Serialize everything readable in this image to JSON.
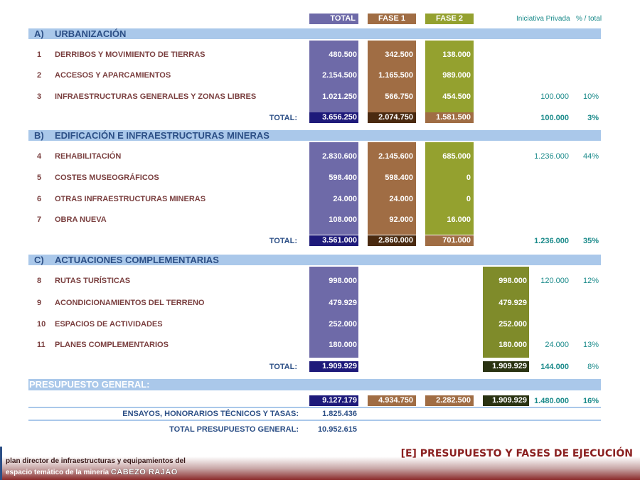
{
  "headers": {
    "total": "TOTAL",
    "fase1": "FASE 1",
    "fase2": "FASE 2",
    "iniciativa": "Iniciativa Privada",
    "pct": "% / total"
  },
  "colors": {
    "total": "#6e6aa8",
    "total_dark": "#1e1a7a",
    "fase1": "#a06d44",
    "fase1_dark": "#4a2a10",
    "fase2": "#94a12f",
    "fase2_dark": "#2a3312",
    "section_bar": "#aac8ea",
    "section_text": "#2c4f86",
    "item_text": "#7a3f3f",
    "teal": "#1a8a8a"
  },
  "sections": {
    "a": {
      "letter": "A)",
      "title": "URBANIZACIÓN",
      "items": [
        {
          "num": "1",
          "name": "DERRIBOS Y MOVIMIENTO DE TIERRAS",
          "total": "480.500",
          "fase1": "342.500",
          "fase2": "138.000",
          "ip": "",
          "pct": ""
        },
        {
          "num": "2",
          "name": "ACCESOS Y APARCAMIENTOS",
          "total": "2.154.500",
          "fase1": "1.165.500",
          "fase2": "989.000",
          "ip": "",
          "pct": ""
        },
        {
          "num": "3",
          "name": "INFRAESTRUCTURAS GENERALES Y ZONAS LIBRES",
          "total": "1.021.250",
          "fase1": "566.750",
          "fase2": "454.500",
          "ip": "100.000",
          "pct": "10%"
        }
      ],
      "totals": {
        "label": "TOTAL:",
        "total": "3.656.250",
        "fase1": "2.074.750",
        "fase2": "1.581.500",
        "ip": "100.000",
        "pct": "3%"
      }
    },
    "b": {
      "letter": "B)",
      "title": "EDIFICACIÓN E INFRAESTRUCTURAS MINERAS",
      "items": [
        {
          "num": "4",
          "name": "REHABILITACIÓN",
          "total": "2.830.600",
          "fase1": "2.145.600",
          "fase2": "685.000",
          "ip": "1.236.000",
          "pct": "44%"
        },
        {
          "num": "5",
          "name": "COSTES MUSEOGRÁFICOS",
          "total": "598.400",
          "fase1": "598.400",
          "fase2": "0",
          "ip": "",
          "pct": ""
        },
        {
          "num": "6",
          "name": "OTRAS INFRAESTRUCTURAS MINERAS",
          "total": "24.000",
          "fase1": "24.000",
          "fase2": "0",
          "ip": "",
          "pct": ""
        },
        {
          "num": "7",
          "name": "OBRA NUEVA",
          "total": "108.000",
          "fase1": "92.000",
          "fase2": "16.000",
          "ip": "",
          "pct": ""
        }
      ],
      "totals": {
        "label": "TOTAL:",
        "total": "3.561.000",
        "fase1": "2.860.000",
        "fase2": "701.000",
        "ip": "1.236.000",
        "pct": "35%"
      }
    },
    "c": {
      "letter": "C)",
      "title": "ACTUACIONES COMPLEMENTARIAS",
      "items": [
        {
          "num": "8",
          "name": "RUTAS TURÍSTICAS",
          "total": "998.000",
          "fase3": "998.000",
          "ip": "120.000",
          "pct": "12%"
        },
        {
          "num": "9",
          "name": "ACONDICIONAMIENTOS DEL TERRENO",
          "total": "479.929",
          "fase3": "479.929",
          "ip": "",
          "pct": ""
        },
        {
          "num": "10",
          "name": "ESPACIOS DE ACTIVIDADES",
          "total": "252.000",
          "fase3": "252.000",
          "ip": "",
          "pct": ""
        },
        {
          "num": "11",
          "name": "PLANES COMPLEMENTARIOS",
          "total": "180.000",
          "fase3": "180.000",
          "ip": "24.000",
          "pct": "13%"
        }
      ],
      "totals": {
        "label": "TOTAL:",
        "total": "1.909.929",
        "fase3": "1.909.929",
        "ip": "144.000",
        "pct": "8%"
      }
    }
  },
  "general": {
    "title": "PRESUPUESTO GENERAL:",
    "total": "9.127.179",
    "fase1": "4.934.750",
    "fase2": "2.282.500",
    "fase3": "1.909.929",
    "ip": "1.480.000",
    "pct": "16%",
    "ensayos_label": "ENSAYOS, HONORARIOS TÉCNICOS Y TASAS:",
    "ensayos_value": "1.825.436",
    "final_label": "TOTAL PRESUPUESTO GENERAL:",
    "final_value": "10.952.615"
  },
  "footer": {
    "section_title": "[E] PRESUPUESTO Y FASES DE EJECUCIÓN",
    "line1": "plan director de infraestructuras y equipamientos del",
    "line2": "espacio temático de la minería",
    "brand": "CABEZO RAJAO"
  }
}
